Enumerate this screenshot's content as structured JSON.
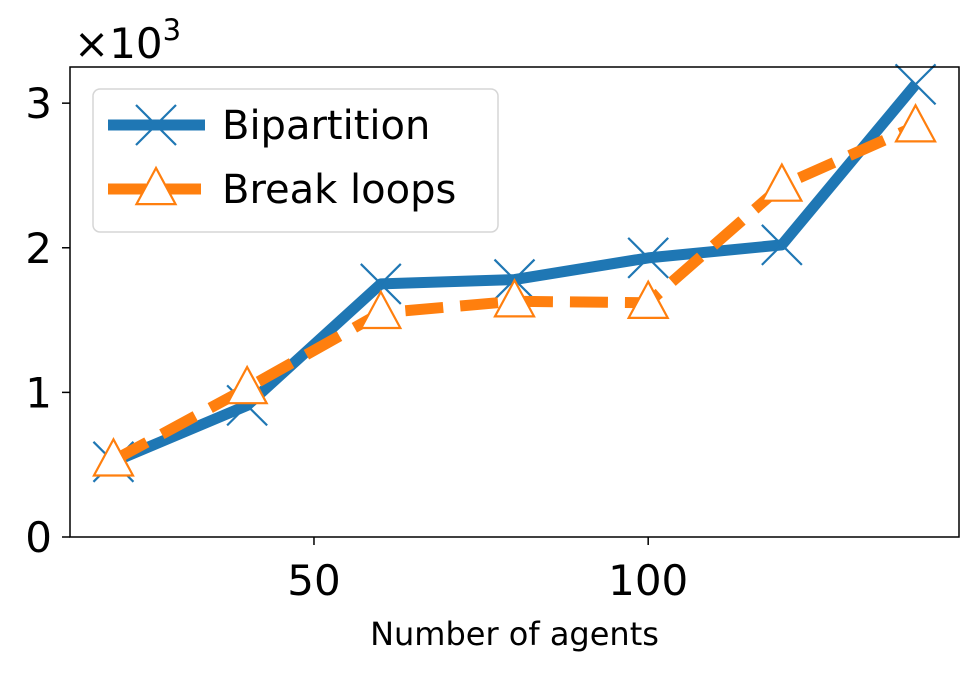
{
  "chart_data": {
    "type": "line",
    "xlabel": "Number of agents",
    "ylabel": "",
    "xlim": [
      13.5,
      146.5
    ],
    "ylim": [
      0,
      3.25
    ],
    "x_ticks": [
      50,
      100
    ],
    "y_ticks": [
      0,
      1,
      2,
      3
    ],
    "y_multiplier": {
      "base": "×10",
      "exponent": "3"
    },
    "grid": false,
    "legend_position": "upper-left",
    "series": [
      {
        "name": "Bipartition",
        "color": "#1f77b4",
        "line_style": "solid",
        "marker": "x",
        "x": [
          20,
          40,
          60,
          80,
          100,
          120,
          140
        ],
        "y": [
          0.52,
          0.91,
          1.75,
          1.78,
          1.93,
          2.02,
          3.13
        ]
      },
      {
        "name": "Break loops",
        "color": "#ff7f0e",
        "line_style": "dashed",
        "marker": "triangle-open",
        "x": [
          20,
          40,
          60,
          80,
          100,
          120,
          140
        ],
        "y": [
          0.53,
          1.03,
          1.55,
          1.63,
          1.62,
          2.43,
          2.84
        ]
      }
    ]
  }
}
